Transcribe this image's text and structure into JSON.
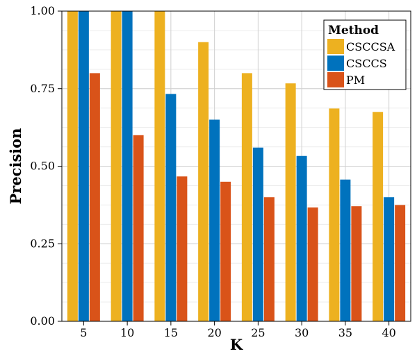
{
  "chart_data": {
    "type": "bar",
    "title": "",
    "xlabel": "K",
    "ylabel": "Precision",
    "categories": [
      "5",
      "10",
      "15",
      "20",
      "25",
      "30",
      "35",
      "40"
    ],
    "ylim": [
      0,
      1
    ],
    "yticks": [
      "0.00",
      "0.25",
      "0.50",
      "0.75",
      "1.00"
    ],
    "grid": true,
    "legend": {
      "title": "Method",
      "placement": "top-right"
    },
    "series": [
      {
        "name": "CSCCSA",
        "color": "#EDB120",
        "values": [
          1.0,
          1.0,
          1.0,
          0.9,
          0.8,
          0.767,
          0.686,
          0.675
        ]
      },
      {
        "name": "CSCCS",
        "color": "#0072BD",
        "values": [
          1.0,
          1.0,
          0.733,
          0.65,
          0.56,
          0.533,
          0.457,
          0.4
        ]
      },
      {
        "name": "PM",
        "color": "#D95319",
        "values": [
          0.8,
          0.6,
          0.467,
          0.45,
          0.4,
          0.367,
          0.371,
          0.375
        ]
      }
    ]
  }
}
